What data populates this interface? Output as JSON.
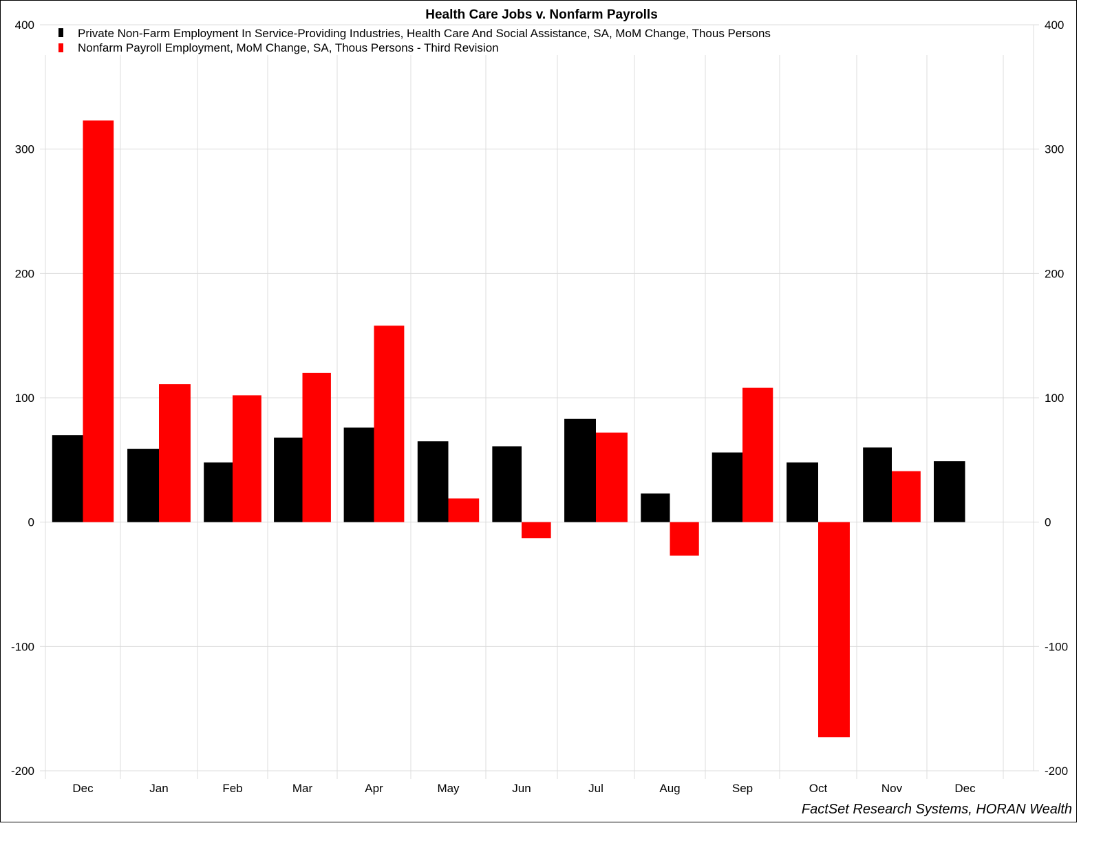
{
  "chart_data": {
    "type": "bar",
    "title": "Health Care Jobs v. Nonfarm Payrolls",
    "xlabel": "",
    "ylabel": "",
    "ylim": [
      -200,
      400
    ],
    "yticks": [
      400,
      300,
      200,
      100,
      0,
      -100,
      -200
    ],
    "grid": true,
    "legend_placement": "top-left",
    "categories": [
      "Dec",
      "Jan",
      "Feb",
      "Mar",
      "Apr",
      "May",
      "Jun",
      "Jul",
      "Aug",
      "Sep",
      "Oct",
      "Nov",
      "Dec"
    ],
    "series": [
      {
        "name": "Private Non-Farm Employment In Service-Providing Industries, Health Care And Social Assistance, SA, MoM Change, Thous Persons",
        "color": "#000000",
        "values": [
          70,
          59,
          48,
          68,
          76,
          65,
          61,
          83,
          23,
          56,
          48,
          60,
          49
        ]
      },
      {
        "name": "Nonfarm Payroll Employment, MoM Change, SA, Thous Persons - Third Revision",
        "color": "#ff0000",
        "values": [
          323,
          111,
          102,
          120,
          158,
          19,
          -13,
          72,
          -27,
          108,
          -173,
          41,
          null
        ]
      }
    ],
    "source": "FactSet Research Systems, HORAN Wealth"
  }
}
